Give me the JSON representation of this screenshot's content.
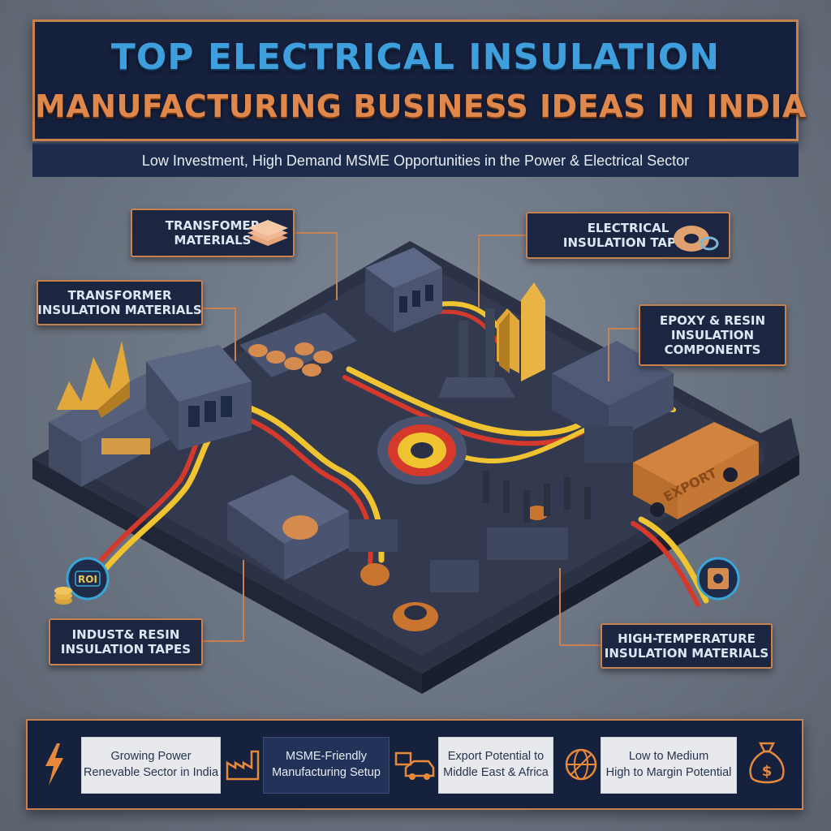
{
  "title": {
    "line1": "TOP ELECTRICAL INSULATION",
    "line2": "MANUFACTURING BUSINESS IDEAS IN INDIA",
    "subtitle": "Low Investment, High Demand MSME Opportunities in the Power & Electrical Sector"
  },
  "callouts": {
    "transformer_materials": [
      "TRANSFOMER",
      "MATERIALS"
    ],
    "transformer_insulation": [
      "TRANSFORMER",
      "INSULATION MATERIALS"
    ],
    "electrical_tapes": [
      "ELECTRICAL",
      "INSULATION TAPES"
    ],
    "epoxy_resin": [
      "EPOXY & RESIN",
      "INSULATION",
      "COMPONENTS"
    ],
    "indust_resin": [
      "INDUST& RESIN",
      "INSULATION TAPES"
    ],
    "high_temp": [
      "HIGH-TEMPERATURE",
      "INSULATION MATERIALS"
    ]
  },
  "scene_labels": {
    "roi_badge": "ROI",
    "container_label": "EXPORT"
  },
  "features": [
    {
      "lines": [
        "Growing Power",
        "Renevable Sector in India"
      ],
      "icon": "lightning-bolt-icon"
    },
    {
      "lines": [
        "MSME-Friendly",
        "Manufacturing Setup"
      ],
      "icon": "factory-icon"
    },
    {
      "lines": [
        "Export Potential to",
        "Middle East & Africa"
      ],
      "icon": "truck-icon"
    },
    {
      "lines": [
        "Low to Medium",
        "High to Margin Potential"
      ],
      "icon": "globe-icon"
    }
  ],
  "end_icon": "money-bag-icon",
  "colors": {
    "navy": "#16213e",
    "copper": "#c8814f",
    "title_blue": "#3f9fdc",
    "title_orange": "#e0874b",
    "platform_top": "#2b3145",
    "cable_yellow": "#f0c430",
    "cable_red": "#d4392c",
    "gold_arrow": "#e2a93a"
  }
}
